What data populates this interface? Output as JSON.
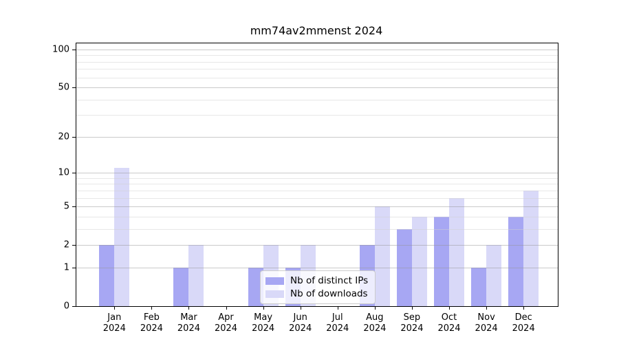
{
  "chart_data": {
    "type": "bar",
    "title": "mm74av2mmenst 2024",
    "scale": "log1p",
    "grid": true,
    "legend_position": "lower center",
    "categories": [
      {
        "month": "Jan",
        "year": "2024"
      },
      {
        "month": "Feb",
        "year": "2024"
      },
      {
        "month": "Mar",
        "year": "2024"
      },
      {
        "month": "Apr",
        "year": "2024"
      },
      {
        "month": "May",
        "year": "2024"
      },
      {
        "month": "Jun",
        "year": "2024"
      },
      {
        "month": "Jul",
        "year": "2024"
      },
      {
        "month": "Aug",
        "year": "2024"
      },
      {
        "month": "Sep",
        "year": "2024"
      },
      {
        "month": "Oct",
        "year": "2024"
      },
      {
        "month": "Nov",
        "year": "2024"
      },
      {
        "month": "Dec",
        "year": "2024"
      }
    ],
    "series": [
      {
        "name": "Nb of distinct IPs",
        "color": "#a7a7f3",
        "values": [
          2,
          0,
          1,
          0,
          1,
          1,
          0,
          2,
          3,
          4,
          1,
          4
        ]
      },
      {
        "name": "Nb of downloads",
        "color": "#d9d9f8",
        "values": [
          11,
          0,
          2,
          0,
          2,
          2,
          0,
          5,
          4,
          6,
          2,
          7
        ]
      }
    ],
    "y_axis": {
      "ylim": [
        0,
        100
      ],
      "ticks": [
        0,
        1,
        2,
        5,
        10,
        20,
        50,
        100
      ],
      "major_gridlines": [
        1,
        2,
        5,
        10,
        20,
        50,
        100
      ],
      "minor_gridlines": [
        3,
        4,
        6,
        7,
        8,
        9,
        30,
        40,
        60,
        70,
        80,
        90
      ]
    }
  }
}
